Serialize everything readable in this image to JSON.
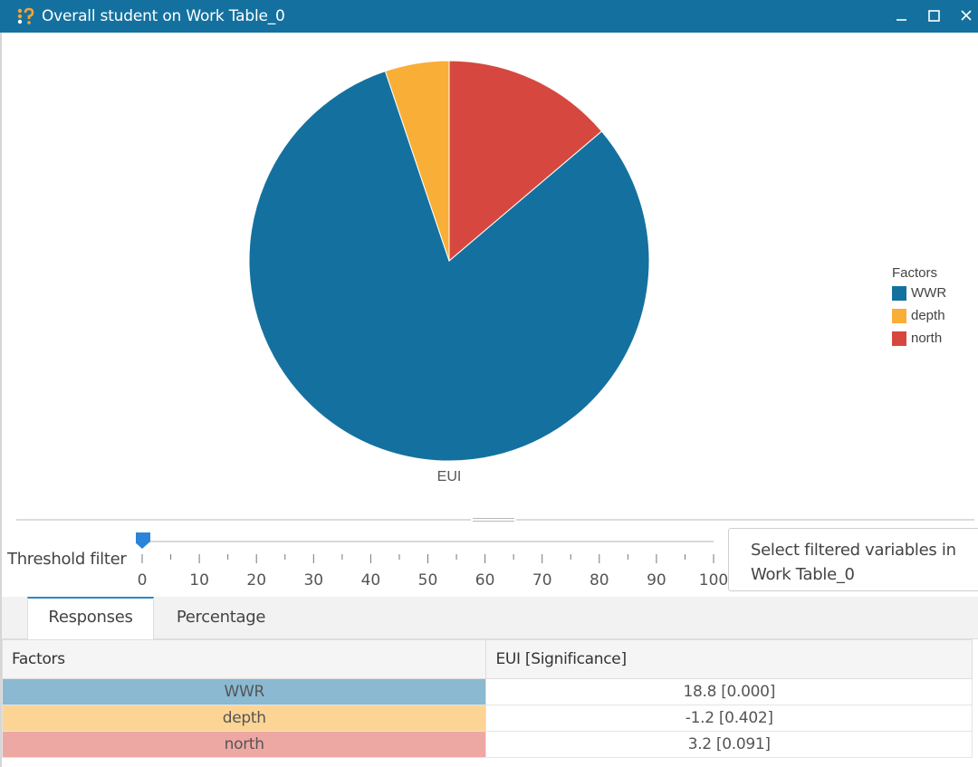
{
  "window": {
    "title": "Overall student on Work Table_0",
    "icon": "app-logo-icon",
    "controls": [
      "minimize-icon",
      "maximize-icon",
      "close-icon"
    ],
    "title_bar_color": "#14719f"
  },
  "chart_data": {
    "type": "pie",
    "categories": [
      "WWR",
      "depth",
      "north"
    ],
    "values": [
      18.8,
      1.2,
      3.2
    ],
    "colors": [
      "#14719f",
      "#f9ae38",
      "#d6483f"
    ],
    "xlabel": "EUI",
    "legend_title": "Factors",
    "legend_position": "right"
  },
  "threshold": {
    "label": "Threshold filter",
    "value": 0,
    "min": 0,
    "max": 100,
    "tick_labels": [
      "0",
      "10",
      "20",
      "30",
      "40",
      "50",
      "60",
      "70",
      "80",
      "90",
      "100"
    ],
    "filter_button": "Select filtered variables in Work Table_0"
  },
  "tabs": [
    {
      "label": "Responses",
      "active": true
    },
    {
      "label": "Percentage",
      "active": false
    }
  ],
  "table": {
    "headers": [
      "Factors",
      "EUI [Significance]"
    ],
    "rows": [
      {
        "factor": "WWR",
        "value": "18.8 [0.000]",
        "color": "#8ab9d1"
      },
      {
        "factor": "depth",
        "value": "-1.2 [0.402]",
        "color": "#fcd595"
      },
      {
        "factor": "north",
        "value": "3.2 [0.091]",
        "color": "#eea8a4"
      }
    ]
  }
}
